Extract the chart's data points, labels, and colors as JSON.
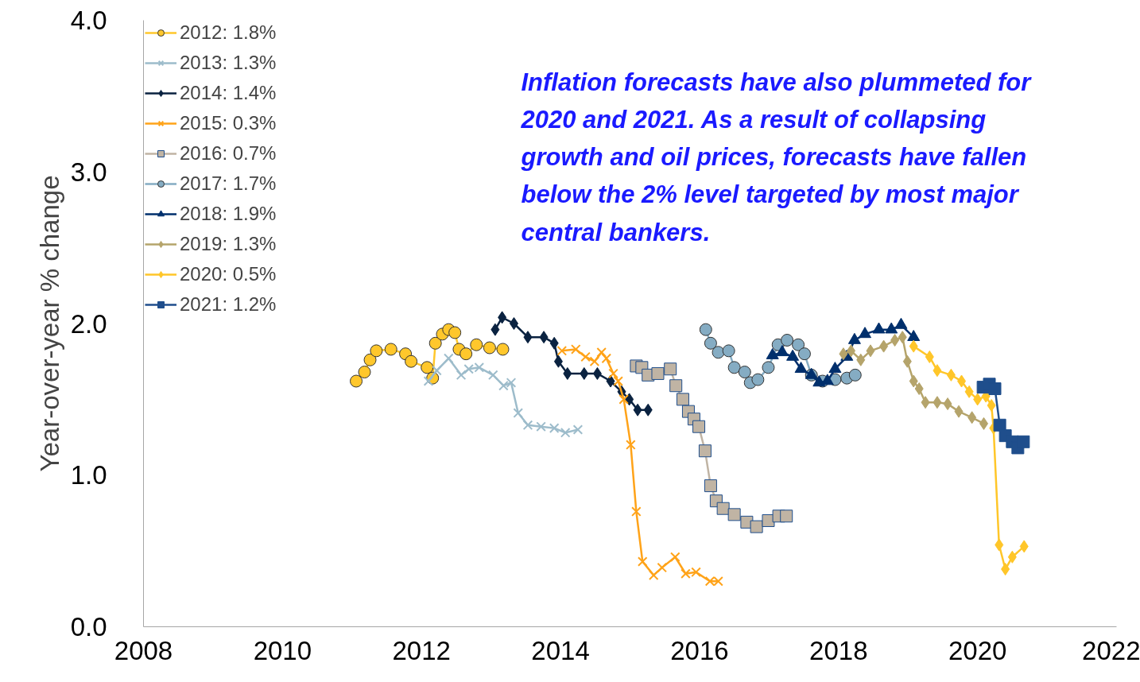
{
  "chart_data": {
    "type": "line",
    "ylabel": "Year-over-year % change",
    "annotations": [
      "Inflation forecasts have also plummeted for 2020 and 2021. As a result of collapsing growth and oil prices, forecasts have fallen below the 2% level targeted by most major central bankers."
    ],
    "xlim": [
      2008,
      2022
    ],
    "xticks": [
      2008,
      2010,
      2012,
      2014,
      2016,
      2018,
      2020,
      2022
    ],
    "ylim": [
      0,
      4
    ],
    "yticks": [
      {
        "value": 0,
        "label": "0.0"
      },
      {
        "value": 1,
        "label": "1.0"
      },
      {
        "value": 2,
        "label": "2.0"
      },
      {
        "value": 3,
        "label": "3.0"
      },
      {
        "value": 4,
        "label": "4.0"
      }
    ],
    "grid": false,
    "legend": "top left",
    "series": [
      {
        "name": "2012: 1.8%",
        "color": "#ffc72c",
        "marker": "circle",
        "x": [
          2011.06,
          2011.18,
          2011.26,
          2011.35,
          2011.56,
          2011.77,
          2011.85,
          2012.08,
          2012.16,
          2012.2,
          2012.3,
          2012.39,
          2012.48,
          2012.54,
          2012.64,
          2012.79,
          2012.98,
          2013.17
        ],
        "values": [
          1.62,
          1.68,
          1.76,
          1.82,
          1.83,
          1.8,
          1.75,
          1.71,
          1.64,
          1.87,
          1.93,
          1.96,
          1.94,
          1.83,
          1.8,
          1.86,
          1.84,
          1.83
        ]
      },
      {
        "name": "2013: 1.3%",
        "color": "#9dbccb",
        "marker": "cross",
        "x": [
          2012.1,
          2012.22,
          2012.39,
          2012.57,
          2012.68,
          2012.83,
          2013.03,
          2013.18,
          2013.29,
          2013.39,
          2013.53,
          2013.72,
          2013.91,
          2014.07,
          2014.25
        ],
        "values": [
          1.62,
          1.69,
          1.77,
          1.66,
          1.7,
          1.71,
          1.66,
          1.59,
          1.61,
          1.41,
          1.33,
          1.32,
          1.31,
          1.28,
          1.3
        ]
      },
      {
        "name": "2014: 1.4%",
        "color": "#0a2240",
        "marker": "diamond",
        "x": [
          2013.06,
          2013.16,
          2013.33,
          2013.53,
          2013.76,
          2013.91,
          2013.97,
          2014.1,
          2014.34,
          2014.53,
          2014.72,
          2014.88,
          2014.99,
          2015.11,
          2015.26
        ],
        "values": [
          1.96,
          2.04,
          2.0,
          1.91,
          1.91,
          1.87,
          1.75,
          1.67,
          1.67,
          1.67,
          1.62,
          1.55,
          1.5,
          1.43,
          1.43
        ]
      },
      {
        "name": "2015: 0.3%",
        "color": "#ffa319",
        "marker": "cross",
        "x": [
          2014.02,
          2014.22,
          2014.36,
          2014.49,
          2014.59,
          2014.66,
          2014.76,
          2014.83,
          2014.91,
          2015.01,
          2015.09,
          2015.18,
          2015.34,
          2015.46,
          2015.65,
          2015.8,
          2015.95,
          2016.15,
          2016.27
        ],
        "values": [
          1.82,
          1.83,
          1.78,
          1.75,
          1.81,
          1.77,
          1.67,
          1.62,
          1.5,
          1.2,
          0.76,
          0.43,
          0.34,
          0.39,
          0.46,
          0.35,
          0.36,
          0.3,
          0.3
        ]
      },
      {
        "name": "2016: 0.7%",
        "color": "#c0b4a4",
        "marker": "square",
        "x": [
          2015.09,
          2015.17,
          2015.26,
          2015.4,
          2015.58,
          2015.66,
          2015.76,
          2015.84,
          2015.92,
          2015.99,
          2016.08,
          2016.16,
          2016.24,
          2016.34,
          2016.5,
          2016.68,
          2016.82,
          2016.99,
          2017.14,
          2017.25
        ],
        "values": [
          1.72,
          1.71,
          1.66,
          1.67,
          1.7,
          1.59,
          1.5,
          1.42,
          1.37,
          1.32,
          1.16,
          0.93,
          0.83,
          0.78,
          0.74,
          0.69,
          0.66,
          0.7,
          0.73,
          0.73
        ]
      },
      {
        "name": "2017: 1.7%",
        "color": "#85acc3",
        "marker": "circle",
        "x": [
          2016.09,
          2016.16,
          2016.27,
          2016.42,
          2016.5,
          2016.65,
          2016.73,
          2016.84,
          2016.99,
          2017.13,
          2017.26,
          2017.42,
          2017.51,
          2017.61,
          2017.77,
          2017.95,
          2018.12,
          2018.24
        ],
        "values": [
          1.96,
          1.87,
          1.81,
          1.82,
          1.71,
          1.68,
          1.61,
          1.63,
          1.71,
          1.86,
          1.89,
          1.86,
          1.8,
          1.66,
          1.62,
          1.63,
          1.64,
          1.66
        ]
      },
      {
        "name": "2018: 1.9%",
        "color": "#002f6c",
        "marker": "triangle",
        "x": [
          2017.05,
          2017.19,
          2017.34,
          2017.46,
          2017.61,
          2017.72,
          2017.84,
          2017.95,
          2018.12,
          2018.23,
          2018.38,
          2018.58,
          2018.76,
          2018.9,
          2019.08
        ],
        "values": [
          1.79,
          1.81,
          1.78,
          1.7,
          1.66,
          1.61,
          1.62,
          1.7,
          1.78,
          1.89,
          1.93,
          1.96,
          1.96,
          1.99,
          1.91
        ]
      },
      {
        "name": "2019: 1.3%",
        "color": "#b5a46b",
        "marker": "diamond",
        "x": [
          2018.07,
          2018.18,
          2018.32,
          2018.46,
          2018.65,
          2018.81,
          2018.92,
          2018.99,
          2019.08,
          2019.16,
          2019.25,
          2019.42,
          2019.57,
          2019.73,
          2019.92,
          2020.09
        ],
        "values": [
          1.8,
          1.82,
          1.76,
          1.82,
          1.85,
          1.89,
          1.91,
          1.75,
          1.62,
          1.57,
          1.48,
          1.48,
          1.47,
          1.42,
          1.38,
          1.34
        ]
      },
      {
        "name": "2020: 0.5%",
        "color": "#ffc629",
        "marker": "diamond",
        "x": [
          2019.08,
          2019.31,
          2019.42,
          2019.62,
          2019.77,
          2019.88,
          2020.0,
          2020.12,
          2020.2,
          2020.23,
          2020.31,
          2020.4,
          2020.5,
          2020.67
        ],
        "values": [
          1.85,
          1.78,
          1.69,
          1.66,
          1.62,
          1.55,
          1.5,
          1.52,
          1.46,
          1.31,
          0.54,
          0.38,
          0.46,
          0.53
        ]
      },
      {
        "name": "2021: 1.2%",
        "color": "#1f4e8c",
        "marker": "square",
        "x": [
          2020.08,
          2020.17,
          2020.25,
          2020.32,
          2020.4,
          2020.5,
          2020.58,
          2020.66
        ],
        "values": [
          1.58,
          1.6,
          1.57,
          1.33,
          1.26,
          1.22,
          1.18,
          1.22
        ]
      }
    ]
  }
}
